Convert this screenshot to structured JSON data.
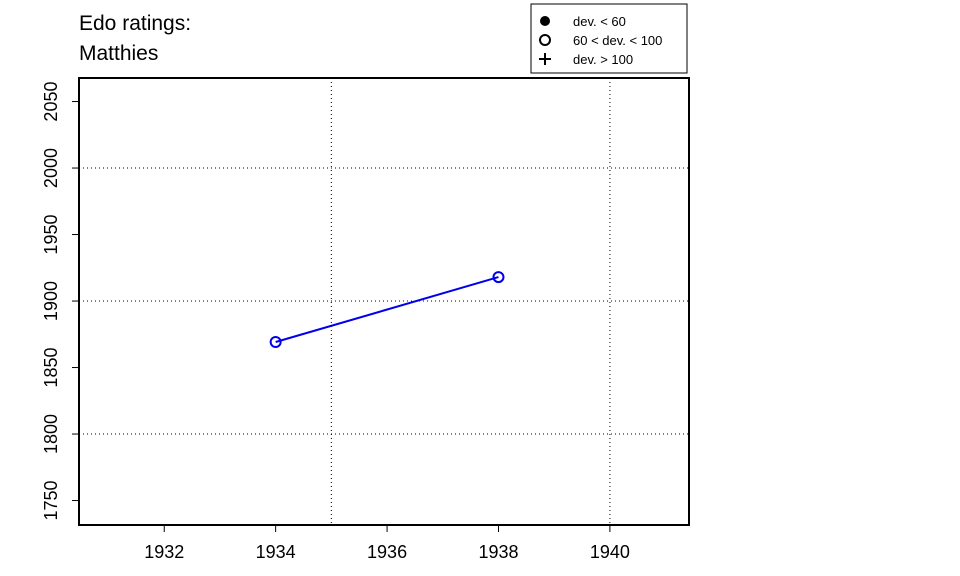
{
  "chart_data": {
    "type": "line",
    "title": [
      "Edo ratings:",
      "Matthies"
    ],
    "x": [
      1934,
      1938
    ],
    "series": [
      {
        "name": "Matthies",
        "color": "#0000ee",
        "marker": "open-circle",
        "values": [
          1869.2,
          1918.0
        ]
      }
    ],
    "xlim": [
      1930.47,
      1941.42
    ],
    "ylim": [
      1731.6,
      2067.7
    ],
    "xticks": [
      1932,
      1934,
      1936,
      1938,
      1940
    ],
    "yticks": [
      1750,
      1800,
      1850,
      1900,
      1950,
      2000,
      2050
    ],
    "xgrid": [
      1935,
      1940
    ],
    "ygrid": [
      1800,
      1900,
      2000
    ],
    "legend_position": "top-right",
    "legend": [
      {
        "symbol": "filled-circle",
        "label": "dev. < 60"
      },
      {
        "symbol": "open-circle",
        "label": "60 < dev. < 100"
      },
      {
        "symbol": "plus",
        "label": "dev. > 100"
      }
    ]
  }
}
